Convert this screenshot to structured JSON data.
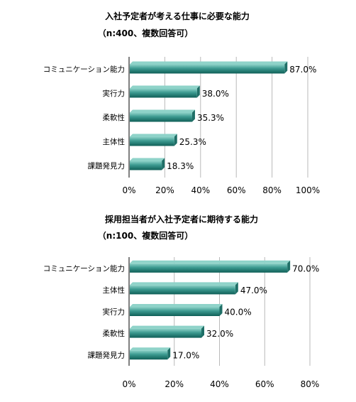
{
  "chart_data": [
    {
      "type": "bar",
      "orientation": "horizontal",
      "title": "入社予定者が考える仕事に必要な能力",
      "subtitle": "（n:400、複数回答可）",
      "categories": [
        "コミュニケーション能力",
        "実行力",
        "柔軟性",
        "主体性",
        "課題発見力"
      ],
      "values": [
        87.0,
        38.0,
        35.3,
        25.3,
        18.3
      ],
      "data_labels": [
        "87.0%",
        "38.0%",
        "35.3%",
        "25.3%",
        "18.3%"
      ],
      "xlim": [
        0,
        100
      ],
      "xticks": [
        0,
        20,
        40,
        60,
        80,
        100
      ],
      "xtick_labels": [
        "0%",
        "20%",
        "40%",
        "60%",
        "80%",
        "100%"
      ],
      "grid": "vertical",
      "legend": "none"
    },
    {
      "type": "bar",
      "orientation": "horizontal",
      "title": "採用担当者が入社予定者に期待する能力",
      "subtitle": "（n:100、複数回答可）",
      "categories": [
        "コミュニケーション能力",
        "主体性",
        "実行力",
        "柔軟性",
        "課題発見力"
      ],
      "values": [
        70.0,
        47.0,
        40.0,
        32.0,
        17.0
      ],
      "data_labels": [
        "70.0%",
        "47.0%",
        "40.0%",
        "32.0%",
        "17.0%"
      ],
      "xlim": [
        0,
        80
      ],
      "xticks": [
        0,
        20,
        40,
        60,
        80
      ],
      "xtick_labels": [
        "0%",
        "20%",
        "40%",
        "60%",
        "80%"
      ],
      "grid": "vertical",
      "legend": "none"
    }
  ],
  "colors": {
    "bar_face": "#3c9a90",
    "bar_light": "#8fd3c9",
    "bar_dark": "#0f5f57",
    "bar_side": "#1f6f67",
    "grid": "#b9b9b9",
    "axis": "#000000"
  }
}
